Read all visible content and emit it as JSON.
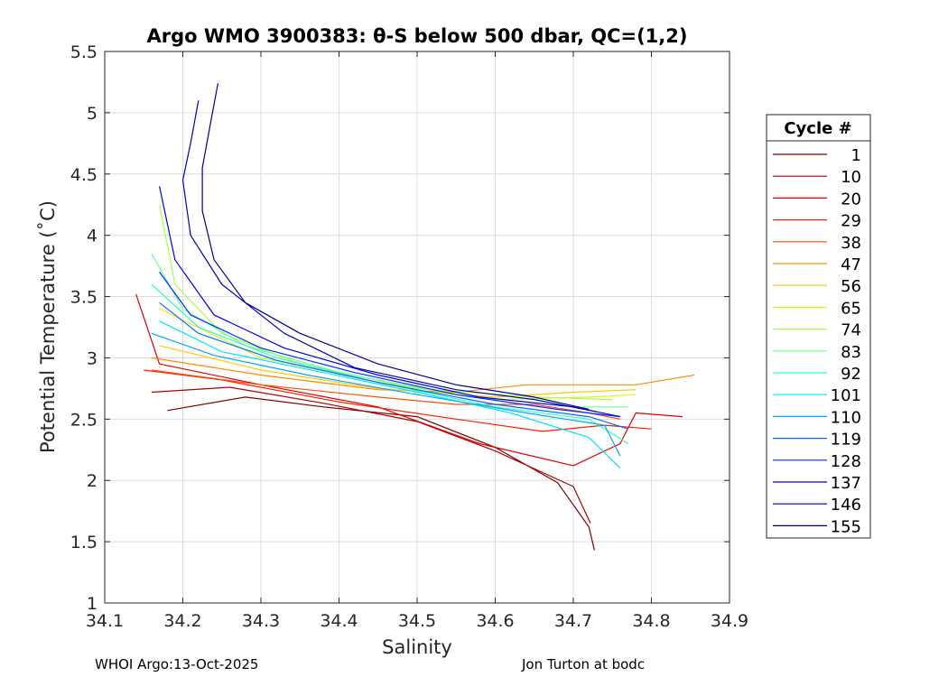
{
  "chart_data": {
    "type": "line",
    "title": "Argo WMO 3900383: θ-S below 500 dbar,  QC=(1,2)",
    "xlabel": "Salinity",
    "ylabel": "Potential Temperature (˚C)",
    "xlim": [
      34.1,
      34.9
    ],
    "ylim": [
      1,
      5.5
    ],
    "xticks": [
      "34.1",
      "34.2",
      "34.3",
      "34.4",
      "34.5",
      "34.6",
      "34.7",
      "34.8",
      "34.9"
    ],
    "yticks": [
      "1",
      "1.5",
      "2",
      "2.5",
      "3",
      "3.5",
      "4",
      "4.5",
      "5",
      "5.5"
    ],
    "grid": true,
    "legend": {
      "title": "Cycle #",
      "placement": "right-outside",
      "entries": [
        {
          "label": "1",
          "color": "#800000"
        },
        {
          "label": "10",
          "color": "#b00000"
        },
        {
          "label": "20",
          "color": "#e00000"
        },
        {
          "label": "29",
          "color": "#ff1c00"
        },
        {
          "label": "38",
          "color": "#ff5000"
        },
        {
          "label": "47",
          "color": "#ff8c00"
        },
        {
          "label": "56",
          "color": "#ffc800"
        },
        {
          "label": "65",
          "color": "#e6f01e"
        },
        {
          "label": "74",
          "color": "#a6ff50"
        },
        {
          "label": "83",
          "color": "#6aff8c"
        },
        {
          "label": "92",
          "color": "#2effc8"
        },
        {
          "label": "101",
          "color": "#00e4ff"
        },
        {
          "label": "110",
          "color": "#00a8ff"
        },
        {
          "label": "119",
          "color": "#006cff"
        },
        {
          "label": "128",
          "color": "#0030ff"
        },
        {
          "label": "137",
          "color": "#0000e8"
        },
        {
          "label": "146",
          "color": "#0000b4"
        },
        {
          "label": "155",
          "color": "#000090"
        }
      ]
    },
    "series": [
      {
        "name": "1",
        "color": "#800000",
        "points": [
          [
            34.18,
            2.57
          ],
          [
            34.28,
            2.68
          ],
          [
            34.38,
            2.6
          ],
          [
            34.5,
            2.52
          ],
          [
            34.6,
            2.27
          ],
          [
            34.68,
            1.98
          ],
          [
            34.72,
            1.62
          ],
          [
            34.727,
            1.43
          ]
        ]
      },
      {
        "name": "10",
        "color": "#b00000",
        "points": [
          [
            34.16,
            2.72
          ],
          [
            34.26,
            2.76
          ],
          [
            34.38,
            2.63
          ],
          [
            34.5,
            2.48
          ],
          [
            34.6,
            2.24
          ],
          [
            34.7,
            1.95
          ],
          [
            34.722,
            1.65
          ]
        ]
      },
      {
        "name": "20",
        "color": "#e00000",
        "points": [
          [
            34.14,
            3.52
          ],
          [
            34.17,
            2.95
          ],
          [
            34.3,
            2.78
          ],
          [
            34.45,
            2.6
          ],
          [
            34.58,
            2.3
          ],
          [
            34.7,
            2.12
          ],
          [
            34.76,
            2.3
          ],
          [
            34.78,
            2.55
          ],
          [
            34.84,
            2.52
          ]
        ]
      },
      {
        "name": "29",
        "color": "#ff1c00",
        "points": [
          [
            34.15,
            2.9
          ],
          [
            34.25,
            2.82
          ],
          [
            34.4,
            2.64
          ],
          [
            34.55,
            2.5
          ],
          [
            34.66,
            2.4
          ],
          [
            34.74,
            2.45
          ],
          [
            34.8,
            2.42
          ]
        ]
      },
      {
        "name": "38",
        "color": "#ff5000",
        "points": [
          [
            34.16,
            2.9
          ],
          [
            34.3,
            2.78
          ],
          [
            34.45,
            2.68
          ],
          [
            34.55,
            2.62
          ],
          [
            34.65,
            2.62
          ],
          [
            34.72,
            2.55
          ],
          [
            34.76,
            2.5
          ]
        ]
      },
      {
        "name": "47",
        "color": "#ff8c00",
        "points": [
          [
            34.16,
            3.0
          ],
          [
            34.3,
            2.86
          ],
          [
            34.45,
            2.74
          ],
          [
            34.55,
            2.72
          ],
          [
            34.64,
            2.78
          ],
          [
            34.72,
            2.78
          ],
          [
            34.78,
            2.78
          ],
          [
            34.855,
            2.86
          ]
        ]
      },
      {
        "name": "56",
        "color": "#ffc800",
        "points": [
          [
            34.17,
            3.1
          ],
          [
            34.3,
            2.9
          ],
          [
            34.45,
            2.75
          ],
          [
            34.6,
            2.68
          ],
          [
            34.7,
            2.72
          ],
          [
            34.78,
            2.74
          ]
        ]
      },
      {
        "name": "65",
        "color": "#e6f01e",
        "points": [
          [
            34.17,
            3.4
          ],
          [
            34.3,
            3.0
          ],
          [
            34.45,
            2.8
          ],
          [
            34.6,
            2.66
          ],
          [
            34.72,
            2.68
          ],
          [
            34.78,
            2.7
          ]
        ]
      },
      {
        "name": "74",
        "color": "#a6ff50",
        "points": [
          [
            34.17,
            4.25
          ],
          [
            34.19,
            3.6
          ],
          [
            34.25,
            3.2
          ],
          [
            34.35,
            2.95
          ],
          [
            34.5,
            2.75
          ],
          [
            34.65,
            2.68
          ],
          [
            34.75,
            2.66
          ]
        ]
      },
      {
        "name": "83",
        "color": "#6aff8c",
        "points": [
          [
            34.16,
            3.85
          ],
          [
            34.2,
            3.4
          ],
          [
            34.28,
            3.1
          ],
          [
            34.4,
            2.88
          ],
          [
            34.55,
            2.7
          ],
          [
            34.7,
            2.6
          ],
          [
            34.77,
            2.6
          ]
        ]
      },
      {
        "name": "92",
        "color": "#2effc8",
        "points": [
          [
            34.16,
            3.6
          ],
          [
            34.22,
            3.25
          ],
          [
            34.32,
            3.0
          ],
          [
            34.45,
            2.8
          ],
          [
            34.6,
            2.6
          ],
          [
            34.72,
            2.5
          ],
          [
            34.77,
            2.3
          ]
        ]
      },
      {
        "name": "101",
        "color": "#00e4ff",
        "points": [
          [
            34.17,
            3.3
          ],
          [
            34.25,
            3.05
          ],
          [
            34.38,
            2.88
          ],
          [
            34.5,
            2.72
          ],
          [
            34.62,
            2.55
          ],
          [
            34.72,
            2.35
          ],
          [
            34.76,
            2.1
          ]
        ]
      },
      {
        "name": "110",
        "color": "#00a8ff",
        "points": [
          [
            34.16,
            3.2
          ],
          [
            34.24,
            3.02
          ],
          [
            34.36,
            2.86
          ],
          [
            34.5,
            2.7
          ],
          [
            34.64,
            2.55
          ],
          [
            34.74,
            2.45
          ],
          [
            34.76,
            2.2
          ]
        ]
      },
      {
        "name": "119",
        "color": "#006cff",
        "points": [
          [
            34.17,
            3.45
          ],
          [
            34.22,
            3.2
          ],
          [
            34.32,
            2.98
          ],
          [
            34.45,
            2.8
          ],
          [
            34.6,
            2.62
          ],
          [
            34.72,
            2.52
          ],
          [
            34.77,
            2.42
          ]
        ]
      },
      {
        "name": "128",
        "color": "#0030ff",
        "points": [
          [
            34.17,
            3.7
          ],
          [
            34.21,
            3.35
          ],
          [
            34.3,
            3.08
          ],
          [
            34.42,
            2.88
          ],
          [
            34.55,
            2.7
          ],
          [
            34.68,
            2.58
          ],
          [
            34.76,
            2.52
          ]
        ]
      },
      {
        "name": "137",
        "color": "#0000e8",
        "points": [
          [
            34.17,
            4.4
          ],
          [
            34.19,
            3.8
          ],
          [
            34.24,
            3.35
          ],
          [
            34.33,
            3.08
          ],
          [
            34.45,
            2.86
          ],
          [
            34.58,
            2.68
          ],
          [
            34.7,
            2.6
          ],
          [
            34.76,
            2.52
          ]
        ]
      },
      {
        "name": "146",
        "color": "#0000b4",
        "points": [
          [
            34.22,
            5.1
          ],
          [
            34.21,
            4.75
          ],
          [
            34.2,
            4.45
          ],
          [
            34.21,
            4.0
          ],
          [
            34.25,
            3.6
          ],
          [
            34.33,
            3.2
          ],
          [
            34.42,
            2.92
          ],
          [
            34.55,
            2.74
          ],
          [
            34.65,
            2.66
          ],
          [
            34.73,
            2.56
          ]
        ]
      },
      {
        "name": "155",
        "color": "#000090",
        "points": [
          [
            34.245,
            5.24
          ],
          [
            34.235,
            4.9
          ],
          [
            34.225,
            4.55
          ],
          [
            34.225,
            4.2
          ],
          [
            34.24,
            3.8
          ],
          [
            34.28,
            3.45
          ],
          [
            34.35,
            3.2
          ],
          [
            34.45,
            2.95
          ],
          [
            34.55,
            2.78
          ],
          [
            34.65,
            2.68
          ],
          [
            34.72,
            2.58
          ]
        ]
      }
    ]
  },
  "footer": {
    "left": "WHOI Argo:13-Oct-2025",
    "right": "Jon Turton at bodc"
  }
}
